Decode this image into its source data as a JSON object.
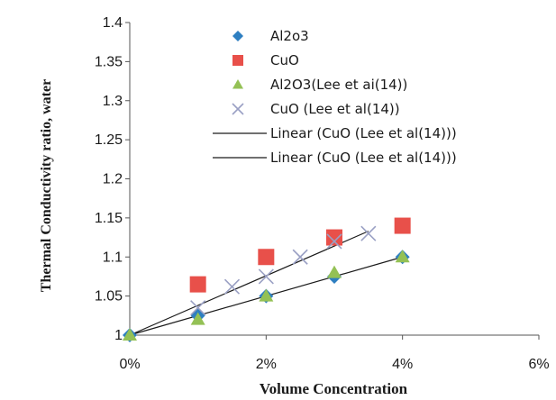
{
  "chart_data": {
    "type": "scatter",
    "xlabel": "Volume Concentration",
    "ylabel": "Thermal Conductivity ratio, water",
    "xlim": [
      0,
      6
    ],
    "ylim": [
      1,
      1.4
    ],
    "x_ticks": [
      "0%",
      "2%",
      "4%",
      "6%"
    ],
    "y_ticks": [
      "1",
      "1.05",
      "1.1",
      "1.15",
      "1.2",
      "1.25",
      "1.3",
      "1.35",
      "1.4"
    ],
    "legend_position": "top-right",
    "grid": false,
    "series": [
      {
        "name": "Al2o3",
        "marker": "diamond",
        "color": "#2e7fc1",
        "x": [
          0,
          1,
          2,
          3,
          4
        ],
        "y": [
          1.0,
          1.025,
          1.05,
          1.075,
          1.1
        ]
      },
      {
        "name": "CuO",
        "marker": "square",
        "color": "#e8504a",
        "x": [
          1,
          2,
          3,
          4
        ],
        "y": [
          1.065,
          1.1,
          1.125,
          1.14
        ]
      },
      {
        "name": "Al2O3(Lee et ai(14))",
        "marker": "triangle",
        "color": "#94c155",
        "x": [
          0,
          1,
          2,
          3,
          4
        ],
        "y": [
          1.0,
          1.02,
          1.05,
          1.08,
          1.1
        ]
      },
      {
        "name": "CuO (Lee et al(14))",
        "marker": "cross",
        "color": "#9aa0c4",
        "x": [
          1,
          1.5,
          2,
          2.5,
          3,
          3.5
        ],
        "y": [
          1.035,
          1.062,
          1.075,
          1.1,
          1.12,
          1.13
        ]
      }
    ],
    "trendlines": [
      {
        "name": "Linear (CuO (Lee et al(14)))",
        "color": "#1a1a1a",
        "x": [
          0,
          3.5
        ],
        "y": [
          1.0,
          1.133
        ]
      },
      {
        "name": "Linear (CuO (Lee et al(14)))",
        "color": "#1a1a1a",
        "x": [
          0,
          4
        ],
        "y": [
          1.0,
          1.1
        ]
      }
    ]
  }
}
